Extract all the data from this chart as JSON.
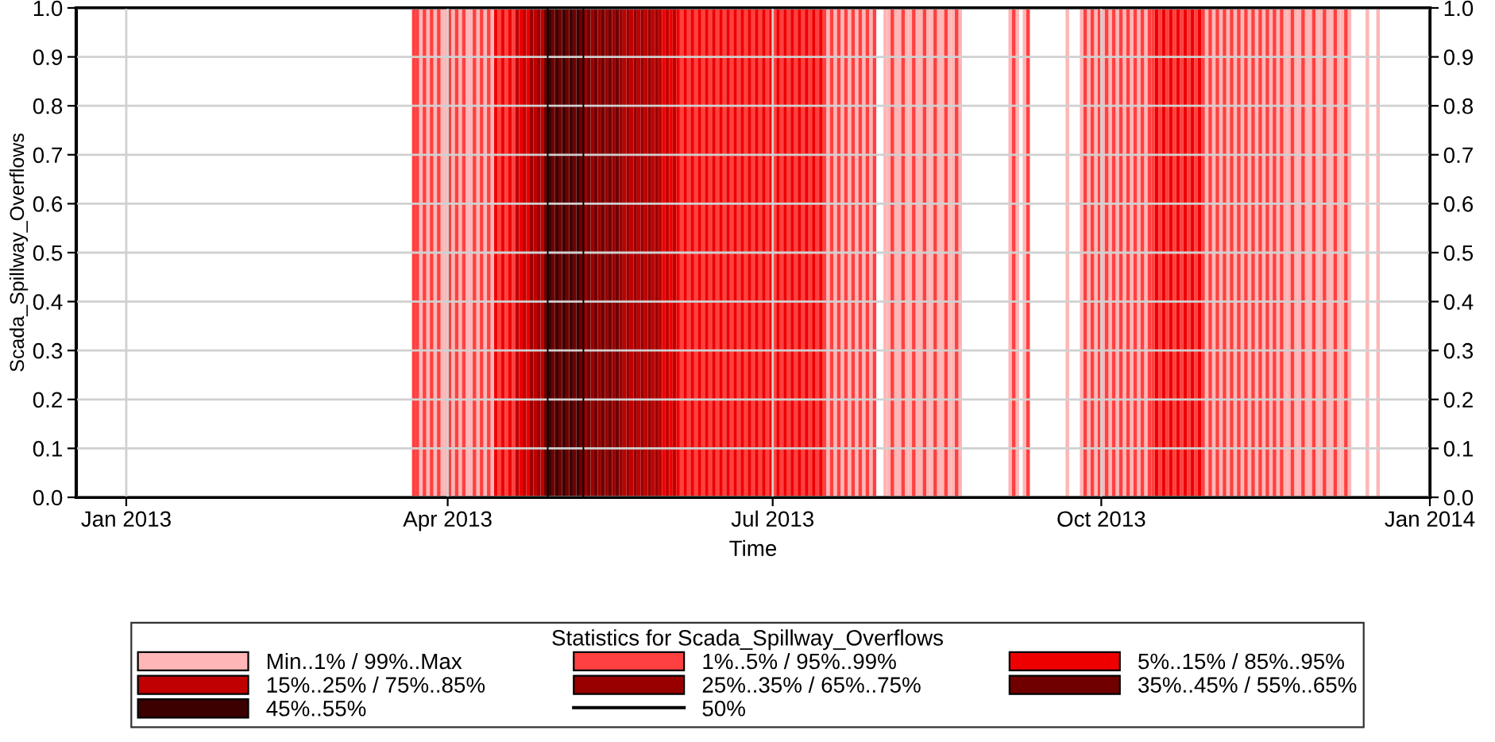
{
  "chart_data": {
    "type": "bar",
    "xlabel": "Time",
    "ylabel": "Scada_Spillway_Overflows",
    "legend_title": "Statistics for Scada_Spillway_Overflows",
    "xlim": [
      "2012-12-18",
      "2014-01-01"
    ],
    "xticks": [
      {
        "value": "2013-01-01",
        "label": "Jan 2013"
      },
      {
        "value": "2013-04-01",
        "label": "Apr 2013"
      },
      {
        "value": "2013-07-01",
        "label": "Jul 2013"
      },
      {
        "value": "2013-10-01",
        "label": "Oct 2013"
      },
      {
        "value": "2014-01-01",
        "label": "Jan 2014"
      }
    ],
    "ylim": [
      0,
      1
    ],
    "yticks": [
      {
        "value": 0,
        "label": "0.0"
      },
      {
        "value": 0.1,
        "label": "0.1"
      },
      {
        "value": 0.2,
        "label": "0.2"
      },
      {
        "value": 0.3,
        "label": "0.3"
      },
      {
        "value": 0.4,
        "label": "0.4"
      },
      {
        "value": 0.5,
        "label": "0.5"
      },
      {
        "value": 0.6,
        "label": "0.6"
      },
      {
        "value": 0.7,
        "label": "0.7"
      },
      {
        "value": 0.8,
        "label": "0.8"
      },
      {
        "value": 0.9,
        "label": "0.9"
      },
      {
        "value": 1,
        "label": "1.0"
      }
    ],
    "y2lim": [
      0,
      1
    ],
    "y2ticks": [
      {
        "value": 0,
        "label": "0.0"
      },
      {
        "value": 0.1,
        "label": "0.1"
      },
      {
        "value": 0.2,
        "label": "0.2"
      },
      {
        "value": 0.3,
        "label": "0.3"
      },
      {
        "value": 0.4,
        "label": "0.4"
      },
      {
        "value": 0.5,
        "label": "0.5"
      },
      {
        "value": 0.6,
        "label": "0.6"
      },
      {
        "value": 0.7,
        "label": "0.7"
      },
      {
        "value": 0.8,
        "label": "0.8"
      },
      {
        "value": 0.9,
        "label": "0.9"
      },
      {
        "value": 1,
        "label": "1.0"
      }
    ],
    "grid": true,
    "legend": "bottom",
    "series": [
      {
        "name": "Min..1% / 99%..Max",
        "color": "#ffb6b6",
        "x": [
          "2013-03-24",
          "2013-03-26",
          "2013-03-28",
          "2013-03-30",
          "2013-03-31",
          "2013-04-02",
          "2013-04-04",
          "2013-04-06",
          "2013-04-07",
          "2013-04-09",
          "2013-04-11",
          "2013-04-13",
          "2013-07-16",
          "2013-07-18",
          "2013-07-20",
          "2013-07-22",
          "2013-07-24",
          "2013-07-26",
          "2013-07-28",
          "2013-08-01",
          "2013-08-02",
          "2013-08-04",
          "2013-08-05",
          "2013-08-07",
          "2013-08-08",
          "2013-08-10",
          "2013-08-11",
          "2013-08-13",
          "2013-08-14",
          "2013-08-16",
          "2013-08-17",
          "2013-08-19",
          "2013-08-20",
          "2013-08-22",
          "2013-09-05",
          "2013-09-07",
          "2013-09-09",
          "2013-09-21",
          "2013-09-25",
          "2013-09-27",
          "2013-09-29",
          "2013-10-01",
          "2013-10-03",
          "2013-10-05",
          "2013-10-07",
          "2013-10-09",
          "2013-10-11",
          "2013-10-13",
          "2013-10-30",
          "2013-11-01",
          "2013-11-03",
          "2013-11-05",
          "2013-11-07",
          "2013-11-09",
          "2013-11-11",
          "2013-11-13",
          "2013-11-15",
          "2013-11-17",
          "2013-11-19",
          "2013-11-21",
          "2013-11-22",
          "2013-11-24",
          "2013-11-25",
          "2013-11-27",
          "2013-11-28",
          "2013-11-30",
          "2013-12-01",
          "2013-12-03",
          "2013-12-04",
          "2013-12-06",
          "2013-12-07",
          "2013-12-09",
          "2013-12-14",
          "2013-12-17"
        ],
        "values": [
          1,
          1,
          1,
          1,
          1,
          1,
          1,
          1,
          1,
          1,
          1,
          1,
          1,
          1,
          1,
          1,
          1,
          1,
          1,
          1,
          1,
          1,
          1,
          1,
          1,
          1,
          1,
          1,
          1,
          1,
          1,
          1,
          1,
          1,
          1,
          1,
          1,
          1,
          1,
          1,
          1,
          1,
          1,
          1,
          1,
          1,
          1,
          1,
          1,
          1,
          1,
          1,
          1,
          1,
          1,
          1,
          1,
          1,
          1,
          1,
          1,
          1,
          1,
          1,
          1,
          1,
          1,
          1,
          1,
          1,
          1,
          1,
          1,
          1
        ]
      },
      {
        "name": "1%..5% / 95%..99%",
        "color": "#ff4040",
        "x": [
          "2013-03-22",
          "2013-03-23",
          "2013-03-25",
          "2013-03-27",
          "2013-03-29",
          "2013-04-01",
          "2013-04-03",
          "2013-04-05",
          "2013-04-08",
          "2013-04-10",
          "2013-04-12",
          "2013-04-15",
          "2013-04-17",
          "2013-04-19",
          "2013-06-05",
          "2013-06-07",
          "2013-06-09",
          "2013-06-11",
          "2013-06-13",
          "2013-06-15",
          "2013-06-17",
          "2013-06-19",
          "2013-06-21",
          "2013-06-23",
          "2013-06-25",
          "2013-06-27",
          "2013-06-29",
          "2013-07-01",
          "2013-07-03",
          "2013-07-05",
          "2013-07-07",
          "2013-07-09",
          "2013-07-11",
          "2013-07-13",
          "2013-07-15",
          "2013-07-17",
          "2013-07-19",
          "2013-07-21",
          "2013-07-23",
          "2013-07-25",
          "2013-07-27",
          "2013-07-29",
          "2013-08-03",
          "2013-08-06",
          "2013-08-09",
          "2013-08-12",
          "2013-08-15",
          "2013-08-18",
          "2013-08-21",
          "2013-09-06",
          "2013-09-10",
          "2013-09-26",
          "2013-09-28",
          "2013-09-30",
          "2013-10-02",
          "2013-10-04",
          "2013-10-06",
          "2013-10-08",
          "2013-10-10",
          "2013-10-12",
          "2013-10-14",
          "2013-10-15",
          "2013-10-17",
          "2013-10-19",
          "2013-10-21",
          "2013-10-23",
          "2013-10-25",
          "2013-10-27",
          "2013-10-29",
          "2013-10-31",
          "2013-11-02",
          "2013-11-04",
          "2013-11-06",
          "2013-11-08",
          "2013-11-10",
          "2013-11-12",
          "2013-11-14",
          "2013-11-16",
          "2013-11-18",
          "2013-11-20",
          "2013-11-23",
          "2013-11-26",
          "2013-11-29",
          "2013-12-02",
          "2013-12-05",
          "2013-12-08"
        ],
        "values": [
          1,
          1,
          1,
          1,
          1,
          1,
          1,
          1,
          1,
          1,
          1,
          1,
          1,
          1,
          1,
          1,
          1,
          1,
          1,
          1,
          1,
          1,
          1,
          1,
          1,
          1,
          1,
          1,
          1,
          1,
          1,
          1,
          1,
          1,
          1,
          1,
          1,
          1,
          1,
          1,
          1,
          1,
          1,
          1,
          1,
          1,
          1,
          1,
          1,
          1,
          1,
          1,
          1,
          1,
          1,
          1,
          1,
          1,
          1,
          1,
          1,
          1,
          1,
          1,
          1,
          1,
          1,
          1,
          1,
          1,
          1,
          1,
          1,
          1,
          1,
          1,
          1,
          1,
          1,
          1,
          1,
          1,
          1,
          1,
          1,
          1
        ]
      },
      {
        "name": "5%..15% / 85%..95%",
        "color": "#ee0000",
        "x": [
          "2013-04-14",
          "2013-04-16",
          "2013-04-18",
          "2013-04-21",
          "2013-04-23",
          "2013-05-31",
          "2013-06-02",
          "2013-06-04",
          "2013-06-06",
          "2013-06-08",
          "2013-06-10",
          "2013-06-12",
          "2013-06-14",
          "2013-06-16",
          "2013-06-18",
          "2013-06-20",
          "2013-06-22",
          "2013-06-24",
          "2013-06-26",
          "2013-06-28",
          "2013-06-30",
          "2013-07-02",
          "2013-07-04",
          "2013-07-06",
          "2013-07-08",
          "2013-07-10",
          "2013-07-12",
          "2013-07-14",
          "2013-10-16",
          "2013-10-18",
          "2013-10-20",
          "2013-10-22",
          "2013-10-24",
          "2013-10-26",
          "2013-10-28"
        ],
        "values": [
          1,
          1,
          1,
          1,
          1,
          1,
          1,
          1,
          1,
          1,
          1,
          1,
          1,
          1,
          1,
          1,
          1,
          1,
          1,
          1,
          1,
          1,
          1,
          1,
          1,
          1,
          1,
          1,
          1,
          1,
          1,
          1,
          1,
          1,
          1
        ]
      },
      {
        "name": "15%..25% / 75%..85%",
        "color": "#c00000",
        "x": [
          "2013-04-20",
          "2013-04-22",
          "2013-04-25",
          "2013-04-27",
          "2013-05-20",
          "2013-05-22",
          "2013-05-24",
          "2013-05-26",
          "2013-05-28",
          "2013-05-30",
          "2013-06-01",
          "2013-06-03"
        ],
        "values": [
          1,
          1,
          1,
          1,
          1,
          1,
          1,
          1,
          1,
          1,
          1,
          1
        ]
      },
      {
        "name": "25%..35% / 65%..75%",
        "color": "#980000",
        "x": [
          "2013-04-24",
          "2013-04-26",
          "2013-05-09",
          "2013-05-11",
          "2013-05-13",
          "2013-05-15",
          "2013-05-17",
          "2013-05-19",
          "2013-05-21",
          "2013-05-23",
          "2013-05-25",
          "2013-05-27",
          "2013-05-29"
        ],
        "values": [
          1,
          1,
          1,
          1,
          1,
          1,
          1,
          1,
          1,
          1,
          1,
          1,
          1
        ]
      },
      {
        "name": "35%..45% / 55%..65%",
        "color": "#700000",
        "x": [
          "2013-04-28",
          "2013-04-30",
          "2013-05-02",
          "2013-05-04",
          "2013-05-06",
          "2013-05-08",
          "2013-05-10",
          "2013-05-12",
          "2013-05-14",
          "2013-05-16",
          "2013-05-18"
        ],
        "values": [
          1,
          1,
          1,
          1,
          1,
          1,
          1,
          1,
          1,
          1,
          1
        ]
      },
      {
        "name": "45%..55%",
        "color": "#3c0000",
        "x": [
          "2013-04-29",
          "2013-05-01",
          "2013-05-03",
          "2013-05-05",
          "2013-05-07"
        ],
        "values": [
          1,
          1,
          1,
          1,
          1
        ]
      },
      {
        "name": "50%",
        "type": "line",
        "color": "#000000",
        "x": [
          "2012-12-18",
          "2013-04-29",
          "2013-04-29",
          "2013-05-09",
          "2013-05-09",
          "2014-01-01"
        ],
        "values": [
          0,
          0,
          1,
          1,
          0,
          0
        ]
      }
    ]
  }
}
